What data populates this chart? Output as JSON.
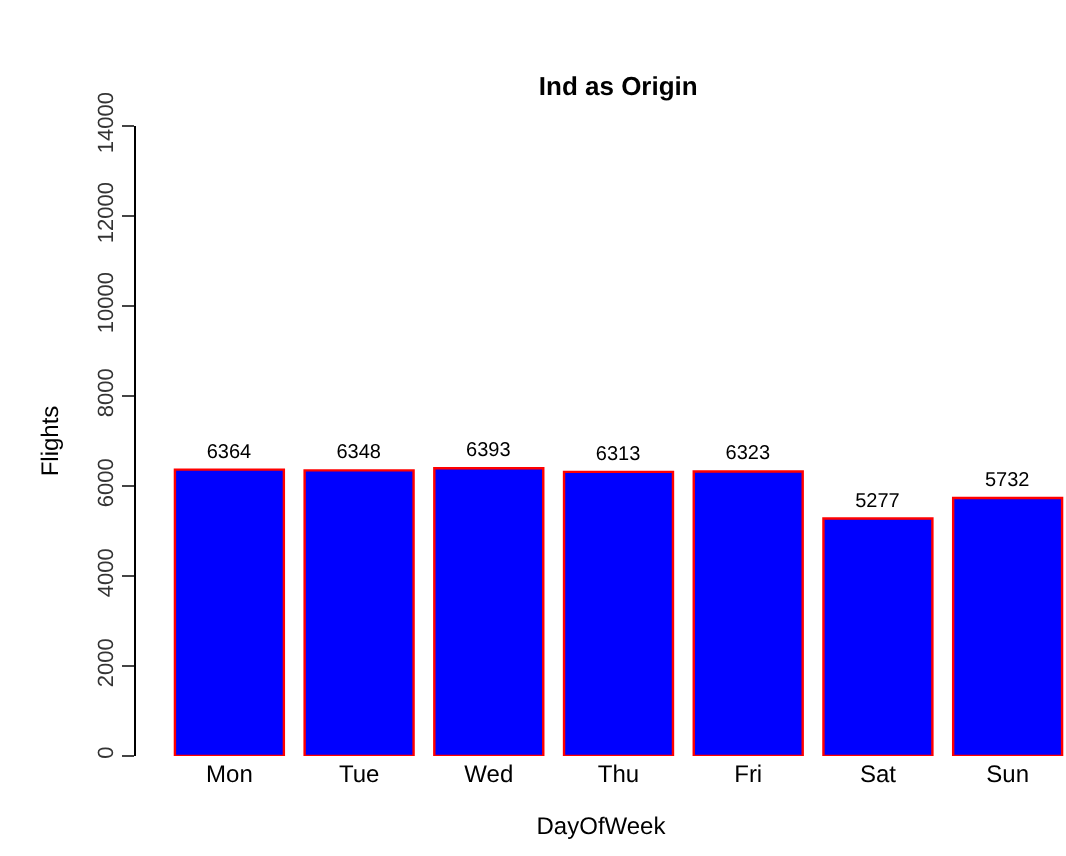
{
  "chart_data": {
    "type": "bar",
    "title": "Ind as Origin",
    "xlabel": "DayOfWeek",
    "ylabel": "Flights",
    "categories": [
      "Mon",
      "Tue",
      "Wed",
      "Thu",
      "Fri",
      "Sat",
      "Sun"
    ],
    "series": [
      {
        "color": "#0000ff",
        "values": [
          6364,
          6348,
          6393,
          6313,
          6323,
          5277,
          5732
        ]
      }
    ],
    "ylim": [
      0,
      14000
    ],
    "yticks": [
      0,
      2000,
      4000,
      6000,
      8000,
      10000,
      12000,
      14000
    ],
    "data_labels": true
  }
}
